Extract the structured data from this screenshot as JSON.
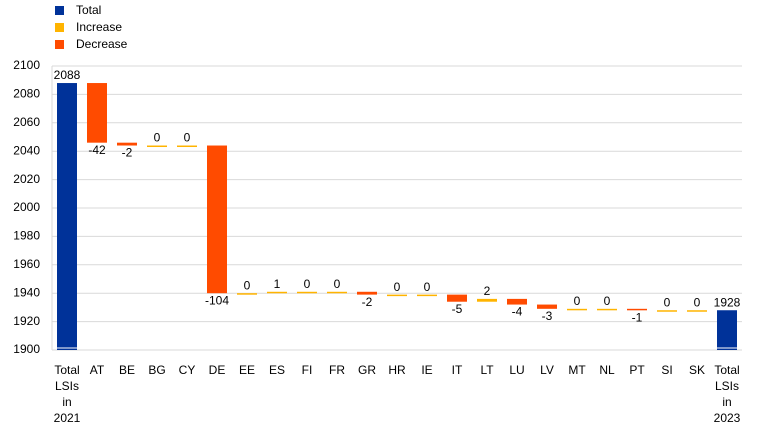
{
  "chart_data": {
    "type": "waterfall",
    "categories": [
      "Total LSIs in 2021",
      "AT",
      "BE",
      "BG",
      "CY",
      "DE",
      "EE",
      "ES",
      "FI",
      "FR",
      "GR",
      "HR",
      "IE",
      "IT",
      "LT",
      "LU",
      "LV",
      "MT",
      "NL",
      "PT",
      "SI",
      "SK",
      "Total LSIs in 2023"
    ],
    "series": [
      {
        "name": "Total",
        "color": "#003299",
        "values": [
          2088,
          null,
          null,
          null,
          null,
          null,
          null,
          null,
          null,
          null,
          null,
          null,
          null,
          null,
          null,
          null,
          null,
          null,
          null,
          null,
          null,
          null,
          1928
        ]
      },
      {
        "name": "Increase",
        "color": "#ffb400",
        "values": [
          null,
          null,
          null,
          0,
          0,
          null,
          0,
          1,
          0,
          0,
          null,
          0,
          0,
          null,
          2,
          null,
          null,
          0,
          0,
          null,
          0,
          0,
          null
        ]
      },
      {
        "name": "Decrease",
        "color": "#ff4b00",
        "values": [
          null,
          -42,
          -2,
          null,
          null,
          -104,
          null,
          null,
          null,
          null,
          -2,
          null,
          null,
          -5,
          null,
          -4,
          -3,
          null,
          null,
          -1,
          null,
          null,
          null
        ]
      }
    ],
    "ylim": [
      1900,
      2100
    ],
    "yticks": [
      1900,
      1920,
      1940,
      1960,
      1980,
      2000,
      2020,
      2040,
      2060,
      2080,
      2100
    ],
    "grid": true
  }
}
